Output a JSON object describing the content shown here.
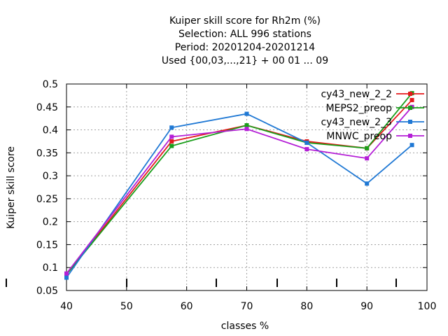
{
  "chart_data": {
    "type": "line",
    "title_lines": [
      "Kuiper skill score  for Rh2m (%)",
      "Selection: ALL    996 stations",
      "Period: 20201204-20201214",
      "Used {00,03,...,21} + 00 01 ... 09"
    ],
    "xlabel": "classes %",
    "ylabel": "Kuiper skill score",
    "xlim": [
      40,
      100
    ],
    "ylim": [
      0.05,
      0.5
    ],
    "xticks": [
      "40",
      "50",
      "60",
      "70",
      "80",
      "90",
      "100"
    ],
    "yticks": [
      "0.05",
      "0.1",
      "0.15",
      "0.2",
      "0.25",
      "0.3",
      "0.35",
      "0.4",
      "0.45",
      "0.5"
    ],
    "grid": true,
    "legend_position": "top-right",
    "series": [
      {
        "name": "cy43_new_2_2",
        "color": "#e41a1c",
        "x": [
          40,
          57.5,
          70,
          80,
          90,
          97.5
        ],
        "y": [
          0.085,
          0.375,
          0.41,
          0.375,
          0.36,
          0.465
        ]
      },
      {
        "name": "MEPS2_preop",
        "color": "#1a9e1a",
        "x": [
          40,
          57.5,
          70,
          80,
          90,
          97.5
        ],
        "y": [
          0.085,
          0.365,
          0.41,
          0.372,
          0.36,
          0.48
        ]
      },
      {
        "name": "cy43_new_2_3",
        "color": "#1f78d4",
        "x": [
          40,
          57.5,
          70,
          80,
          90,
          97.5
        ],
        "y": [
          0.078,
          0.405,
          0.435,
          0.372,
          0.283,
          0.367
        ]
      },
      {
        "name": "MNWC_preop",
        "color": "#b41ed6",
        "x": [
          40,
          57.5,
          70,
          80,
          90,
          97.5
        ],
        "y": [
          0.087,
          0.385,
          0.402,
          0.358,
          0.338,
          0.45
        ]
      }
    ]
  }
}
